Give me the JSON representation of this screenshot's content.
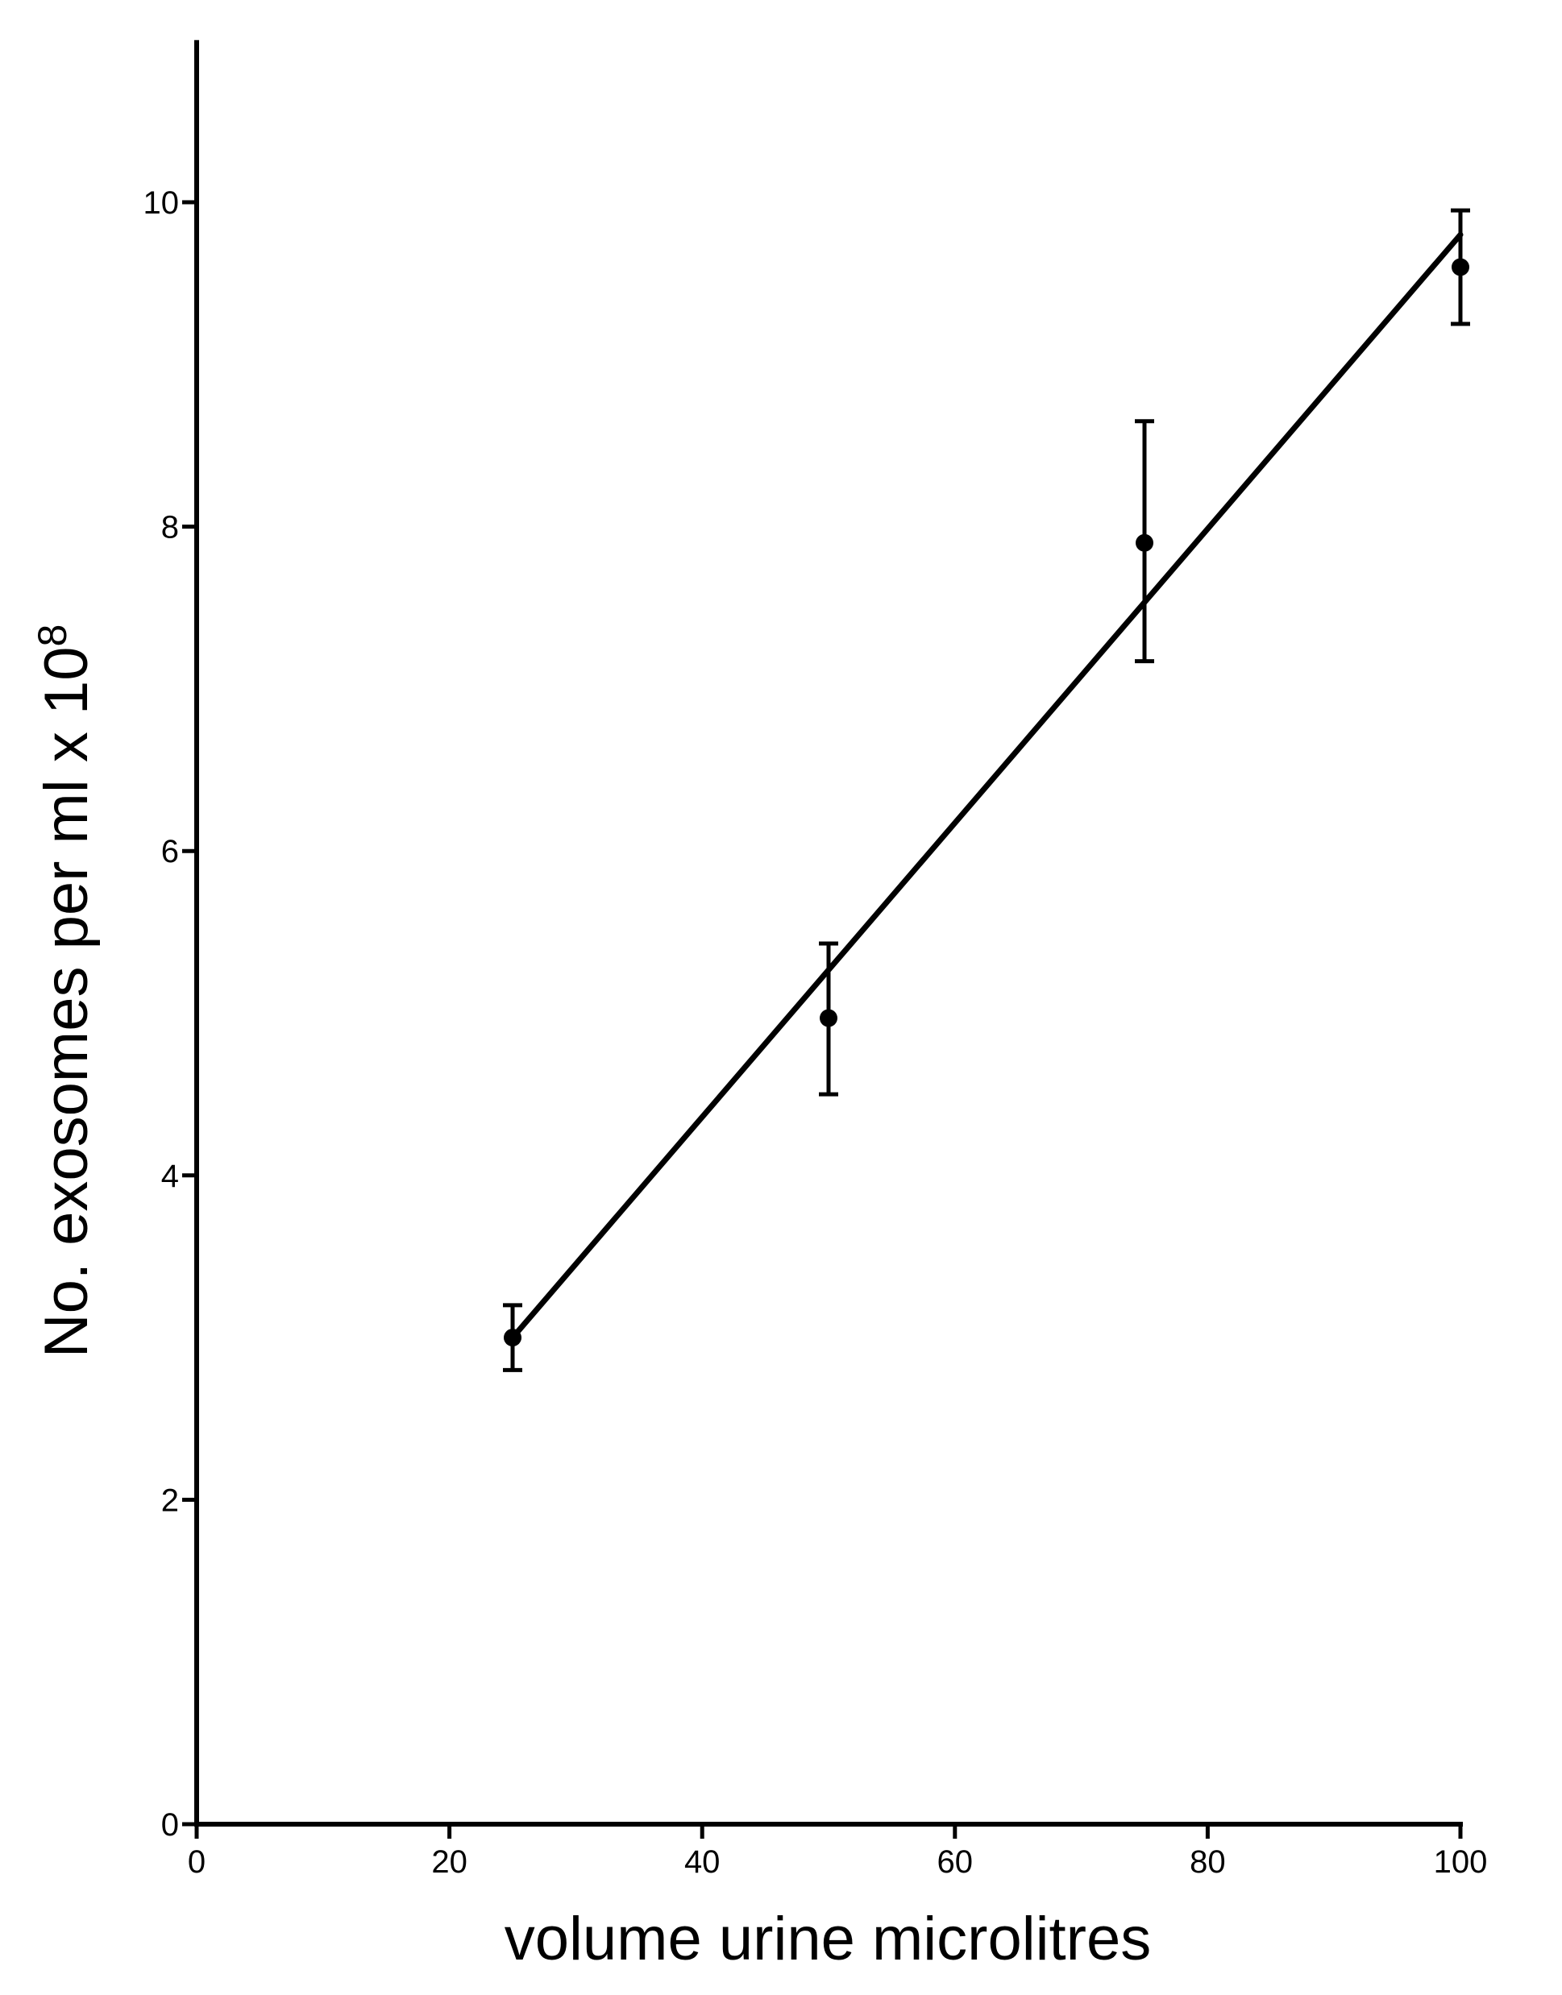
{
  "chart_data": {
    "type": "scatter",
    "xlabel": "volume urine microlitres",
    "ylabel": "No. exosomes per ml x 10",
    "ylabel_superscript": "8",
    "xlim": [
      0,
      100
    ],
    "ylim": [
      0,
      11
    ],
    "x_ticks": [
      "0",
      "20",
      "40",
      "60",
      "80",
      "100"
    ],
    "y_ticks": [
      "0",
      "2",
      "4",
      "6",
      "8",
      "10"
    ],
    "grid": false,
    "legend": "none",
    "colors": {
      "marks": "#000000",
      "background": "#ffffff"
    },
    "points": [
      {
        "x": 25,
        "y": 3.0,
        "err_low": 2.8,
        "err_high": 3.2
      },
      {
        "x": 50,
        "y": 4.97,
        "err_low": 4.5,
        "err_high": 5.43
      },
      {
        "x": 75,
        "y": 7.9,
        "err_low": 7.17,
        "err_high": 8.65
      },
      {
        "x": 100,
        "y": 9.6,
        "err_low": 9.25,
        "err_high": 9.95
      }
    ],
    "fit_line": {
      "x": [
        25,
        100
      ],
      "y": [
        3.0,
        9.8
      ]
    }
  }
}
